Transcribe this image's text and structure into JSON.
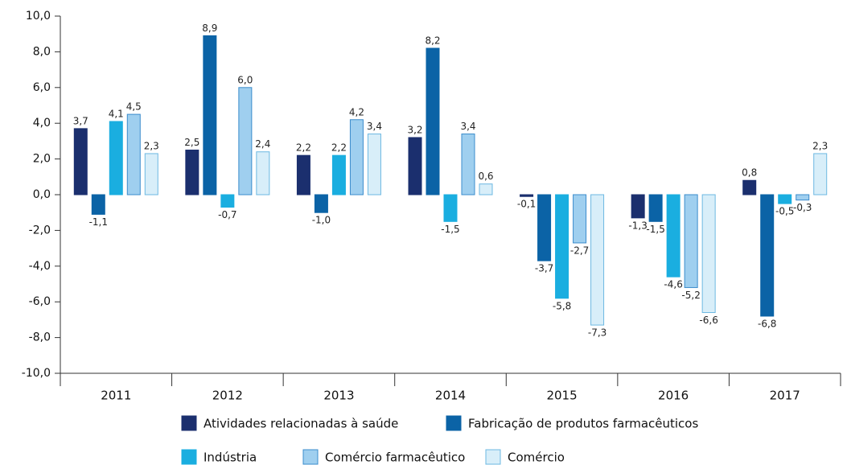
{
  "chart_data": {
    "type": "bar",
    "categories": [
      "2011",
      "2012",
      "2013",
      "2014",
      "2015",
      "2016",
      "2017"
    ],
    "series": [
      {
        "name": "Atividades relacionadas à saúde",
        "color": "#1b2f6e",
        "edgecolor": "#1b2f6e",
        "values": [
          3.7,
          2.5,
          2.2,
          3.2,
          -0.1,
          -1.3,
          0.8
        ],
        "value_labels": [
          "3,7",
          "2,5",
          "2,2",
          "3,2",
          "-0,1",
          "-1,3",
          "0,8"
        ]
      },
      {
        "name": "Fabricação de produtos farmacêuticos",
        "color": "#0b63a6",
        "edgecolor": "#0b63a6",
        "values": [
          -1.1,
          8.9,
          -1.0,
          8.2,
          -3.7,
          -1.5,
          -6.8
        ],
        "value_labels": [
          "-1,1",
          "8,9",
          "-1,0",
          "8,2",
          "-3,7",
          "-1,5",
          "-6,8"
        ]
      },
      {
        "name": "Indústria",
        "color": "#1aaee0",
        "edgecolor": "#1aaee0",
        "values": [
          4.1,
          -0.7,
          2.2,
          -1.5,
          -5.8,
          -4.6,
          -0.5
        ],
        "value_labels": [
          "4,1",
          "-0,7",
          "2,2",
          "-1,5",
          "-5,8",
          "-4,6",
          "-0,5"
        ]
      },
      {
        "name": "Comércio farmacêutico",
        "color": "#9fcfef",
        "edgecolor": "#3b8ccc",
        "values": [
          4.5,
          6.0,
          4.2,
          3.4,
          -2.7,
          -5.2,
          -0.3
        ],
        "value_labels": [
          "4,5",
          "6,0",
          "4,2",
          "3,4",
          "-2,7",
          "-5,2",
          "-0,3"
        ]
      },
      {
        "name": "Comércio",
        "color": "#d8eef9",
        "edgecolor": "#6db8e2",
        "values": [
          2.3,
          2.4,
          3.4,
          0.6,
          -7.3,
          -6.6,
          2.3
        ],
        "value_labels": [
          "2,3",
          "2,4",
          "3,4",
          "0,6",
          "-7,3",
          "-6,6",
          "2,3"
        ]
      }
    ],
    "ylim": [
      -10,
      10
    ],
    "yticks": [
      {
        "value": -10,
        "label": "-10,0"
      },
      {
        "value": -8,
        "label": "-8,0"
      },
      {
        "value": -6,
        "label": "-6,0"
      },
      {
        "value": -4,
        "label": "-4,0"
      },
      {
        "value": -2,
        "label": "-2,0"
      },
      {
        "value": 0,
        "label": "0,0"
      },
      {
        "value": 2,
        "label": "2,0"
      },
      {
        "value": 4,
        "label": "4,0"
      },
      {
        "value": 6,
        "label": "6,0"
      },
      {
        "value": 8,
        "label": "8,0"
      },
      {
        "value": 10,
        "label": "10,0"
      }
    ],
    "grid": false,
    "legend": "bottom"
  }
}
